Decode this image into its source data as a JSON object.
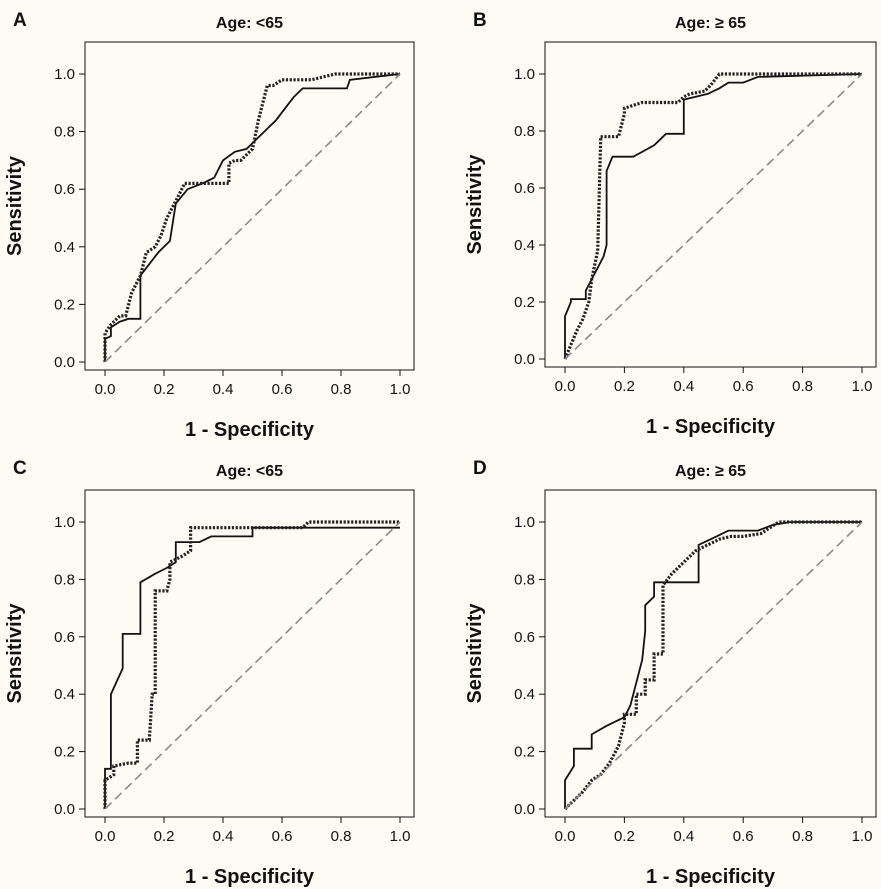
{
  "colors": {
    "background": "#fdfbf3",
    "solid_line": "#111111",
    "dotted_line": "#222222",
    "reference_line": "#8a8a8a",
    "axis": "#111111"
  },
  "chart_data": [
    {
      "panel": "A",
      "type": "line",
      "title": "Age: <65",
      "xlabel": "1 - Specificity",
      "ylabel": "Sensitivity",
      "xlim": [
        0,
        1
      ],
      "ylim": [
        0,
        1
      ],
      "xticks": [
        "0.0",
        "0.2",
        "0.4",
        "0.6",
        "0.8",
        "1.0"
      ],
      "yticks": [
        "0.0",
        "0.2",
        "0.4",
        "0.6",
        "0.8",
        "1.0"
      ],
      "grid": false,
      "series": [
        {
          "style": "solid",
          "x": [
            0,
            0,
            0.02,
            0.02,
            0.05,
            0.08,
            0.08,
            0.12,
            0.12,
            0.15,
            0.18,
            0.22,
            0.24,
            0.28,
            0.33,
            0.37,
            0.4,
            0.44,
            0.48,
            0.5,
            0.54,
            0.58,
            0.61,
            0.64,
            0.67,
            0.7,
            0.82,
            0.83,
            1.0
          ],
          "y": [
            0,
            0.08,
            0.09,
            0.12,
            0.14,
            0.15,
            0.15,
            0.15,
            0.3,
            0.34,
            0.38,
            0.42,
            0.55,
            0.6,
            0.62,
            0.64,
            0.7,
            0.73,
            0.74,
            0.76,
            0.8,
            0.84,
            0.88,
            0.92,
            0.95,
            0.95,
            0.95,
            0.98,
            1.0
          ]
        },
        {
          "style": "dotted",
          "x": [
            0,
            0,
            0.02,
            0.02,
            0.05,
            0.07,
            0.09,
            0.09,
            0.12,
            0.14,
            0.17,
            0.19,
            0.21,
            0.23,
            0.25,
            0.27,
            0.3,
            0.33,
            0.38,
            0.42,
            0.42,
            0.44,
            0.46,
            0.5,
            0.52,
            0.55,
            0.57,
            0.6,
            0.65,
            0.7,
            0.78,
            0.82,
            1.0
          ],
          "y": [
            0,
            0.1,
            0.13,
            0.13,
            0.16,
            0.16,
            0.24,
            0.24,
            0.3,
            0.38,
            0.4,
            0.44,
            0.5,
            0.54,
            0.58,
            0.62,
            0.62,
            0.62,
            0.62,
            0.62,
            0.69,
            0.7,
            0.7,
            0.74,
            0.84,
            0.96,
            0.96,
            0.98,
            0.98,
            0.98,
            1.0,
            1.0,
            1.0
          ]
        },
        {
          "style": "dashed",
          "x": [
            0,
            1
          ],
          "y": [
            0,
            1
          ]
        }
      ]
    },
    {
      "panel": "B",
      "type": "line",
      "title": "Age: ≥ 65",
      "xlabel": "1 - Specificity",
      "ylabel": "Sensitivity",
      "xlim": [
        0,
        1
      ],
      "ylim": [
        0,
        1
      ],
      "xticks": [
        "0.0",
        "0.2",
        "0.4",
        "0.6",
        "0.8",
        "1.0"
      ],
      "yticks": [
        "0.0",
        "0.2",
        "0.4",
        "0.6",
        "0.8",
        "1.0"
      ],
      "grid": false,
      "series": [
        {
          "style": "solid",
          "x": [
            0,
            0,
            0.02,
            0.02,
            0.07,
            0.07,
            0.1,
            0.13,
            0.14,
            0.14,
            0.16,
            0.19,
            0.23,
            0.3,
            0.34,
            0.4,
            0.4,
            0.44,
            0.48,
            0.52,
            0.55,
            0.6,
            0.65,
            1.0
          ],
          "y": [
            0,
            0.15,
            0.2,
            0.21,
            0.21,
            0.24,
            0.3,
            0.36,
            0.4,
            0.66,
            0.71,
            0.71,
            0.71,
            0.75,
            0.79,
            0.79,
            0.91,
            0.92,
            0.93,
            0.95,
            0.97,
            0.97,
            0.99,
            1.0
          ]
        },
        {
          "style": "dotted",
          "x": [
            0,
            0.02,
            0.04,
            0.06,
            0.08,
            0.09,
            0.11,
            0.12,
            0.12,
            0.15,
            0.18,
            0.2,
            0.2,
            0.26,
            0.3,
            0.38,
            0.4,
            0.42,
            0.47,
            0.49,
            0.52,
            0.58,
            1.0
          ],
          "y": [
            0,
            0.05,
            0.1,
            0.14,
            0.2,
            0.28,
            0.38,
            0.76,
            0.78,
            0.78,
            0.78,
            0.86,
            0.88,
            0.9,
            0.9,
            0.9,
            0.92,
            0.93,
            0.94,
            0.96,
            1.0,
            1.0,
            1.0
          ]
        },
        {
          "style": "dashed",
          "x": [
            0,
            1
          ],
          "y": [
            0,
            1
          ]
        }
      ]
    },
    {
      "panel": "C",
      "type": "line",
      "title": "Age: <65",
      "xlabel": "1 - Specificity",
      "ylabel": "Sensitivity",
      "xlim": [
        0,
        1
      ],
      "ylim": [
        0,
        1
      ],
      "xticks": [
        "0.0",
        "0.2",
        "0.4",
        "0.6",
        "0.8",
        "1.0"
      ],
      "yticks": [
        "0.0",
        "0.2",
        "0.4",
        "0.6",
        "0.8",
        "1.0"
      ],
      "grid": false,
      "series": [
        {
          "style": "solid",
          "x": [
            0,
            0,
            0.02,
            0.02,
            0.06,
            0.06,
            0.12,
            0.12,
            0.17,
            0.21,
            0.24,
            0.24,
            0.28,
            0.32,
            0.36,
            0.5,
            0.5,
            0.98,
            1.0
          ],
          "y": [
            0,
            0.14,
            0.14,
            0.4,
            0.49,
            0.61,
            0.61,
            0.79,
            0.82,
            0.84,
            0.86,
            0.93,
            0.93,
            0.93,
            0.95,
            0.95,
            0.98,
            0.98,
            0.98
          ]
        },
        {
          "style": "dotted",
          "x": [
            0,
            0,
            0.03,
            0.03,
            0.08,
            0.11,
            0.11,
            0.15,
            0.16,
            0.17,
            0.17,
            0.21,
            0.22,
            0.22,
            0.26,
            0.29,
            0.29,
            0.5,
            0.67,
            0.69,
            0.9,
            0.92,
            1.0
          ],
          "y": [
            0,
            0.1,
            0.12,
            0.15,
            0.16,
            0.16,
            0.24,
            0.24,
            0.4,
            0.4,
            0.76,
            0.76,
            0.8,
            0.86,
            0.88,
            0.9,
            0.98,
            0.98,
            0.98,
            1.0,
            1.0,
            1.0,
            1.0
          ]
        },
        {
          "style": "dashed",
          "x": [
            0,
            1
          ],
          "y": [
            0,
            1
          ]
        }
      ]
    },
    {
      "panel": "D",
      "type": "line",
      "title": "Age: ≥ 65",
      "xlabel": "1 - Specificity",
      "ylabel": "Sensitivity",
      "xlim": [
        0,
        1
      ],
      "ylim": [
        0,
        1
      ],
      "xticks": [
        "0.0",
        "0.2",
        "0.4",
        "0.6",
        "0.8",
        "1.0"
      ],
      "yticks": [
        "0.0",
        "0.2",
        "0.4",
        "0.6",
        "0.8",
        "1.0"
      ],
      "grid": false,
      "series": [
        {
          "style": "solid",
          "x": [
            0,
            0,
            0.03,
            0.03,
            0.06,
            0.09,
            0.09,
            0.14,
            0.2,
            0.22,
            0.24,
            0.26,
            0.27,
            0.27,
            0.3,
            0.3,
            0.33,
            0.33,
            0.45,
            0.45,
            0.51,
            0.55,
            0.65,
            0.7,
            0.76,
            1.0
          ],
          "y": [
            0,
            0.1,
            0.15,
            0.21,
            0.21,
            0.21,
            0.26,
            0.29,
            0.32,
            0.36,
            0.44,
            0.52,
            0.62,
            0.71,
            0.74,
            0.79,
            0.79,
            0.79,
            0.79,
            0.92,
            0.95,
            0.97,
            0.97,
            0.99,
            1.0,
            1.0
          ]
        },
        {
          "style": "dotted",
          "x": [
            0,
            0.03,
            0.06,
            0.09,
            0.12,
            0.15,
            0.18,
            0.2,
            0.2,
            0.24,
            0.24,
            0.27,
            0.27,
            0.3,
            0.3,
            0.32,
            0.33,
            0.33,
            0.36,
            0.4,
            0.44,
            0.48,
            0.52,
            0.56,
            0.6,
            0.66,
            0.72,
            1.0
          ],
          "y": [
            0,
            0.03,
            0.06,
            0.1,
            0.12,
            0.16,
            0.22,
            0.3,
            0.33,
            0.33,
            0.4,
            0.4,
            0.45,
            0.45,
            0.54,
            0.54,
            0.54,
            0.78,
            0.82,
            0.86,
            0.9,
            0.92,
            0.94,
            0.95,
            0.95,
            0.96,
            1.0,
            1.0
          ]
        },
        {
          "style": "dashed",
          "x": [
            0,
            1
          ],
          "y": [
            0,
            1
          ]
        }
      ]
    }
  ]
}
